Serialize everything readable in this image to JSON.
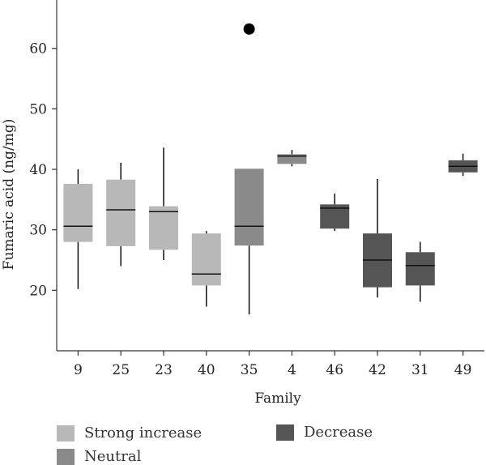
{
  "chart_data": {
    "type": "boxplot",
    "title": "",
    "xlabel": "Family",
    "ylabel": "Fumaric acid (ng/mg)",
    "ylim": [
      10,
      68
    ],
    "yticks": [
      20,
      30,
      40,
      50,
      60
    ],
    "grid": false,
    "legend_position": "bottom",
    "categories": [
      "9",
      "25",
      "23",
      "40",
      "35",
      "4",
      "46",
      "42",
      "31",
      "49"
    ],
    "groups": [
      {
        "name": "Strong increase",
        "color": "#b8b8b8"
      },
      {
        "name": "Neutral",
        "color": "#8a8a8a"
      },
      {
        "name": "Decrease",
        "color": "#555555"
      }
    ],
    "boxes": [
      {
        "category": "9",
        "group": "Strong increase",
        "whisker_low": 20.2,
        "q1": 28.0,
        "median": 30.6,
        "q3": 37.6,
        "whisker_high": 40.0
      },
      {
        "category": "25",
        "group": "Strong increase",
        "whisker_low": 24.0,
        "q1": 27.3,
        "median": 33.3,
        "q3": 38.3,
        "whisker_high": 41.1
      },
      {
        "category": "23",
        "group": "Strong increase",
        "whisker_low": 25.0,
        "q1": 26.7,
        "median": 33.0,
        "q3": 33.9,
        "whisker_high": 43.6
      },
      {
        "category": "40",
        "group": "Strong increase",
        "whisker_low": 17.3,
        "q1": 20.8,
        "median": 22.7,
        "q3": 29.4,
        "whisker_high": 29.8
      },
      {
        "category": "35",
        "group": "Neutral",
        "whisker_low": 16.0,
        "q1": 27.4,
        "median": 30.6,
        "q3": 40.1,
        "whisker_high": 40.1,
        "outliers": [
          63.2
        ]
      },
      {
        "category": "4",
        "group": "Neutral",
        "whisker_low": 40.5,
        "q1": 40.9,
        "median": 42.2,
        "q3": 42.5,
        "whisker_high": 43.2
      },
      {
        "category": "46",
        "group": "Decrease",
        "whisker_low": 29.8,
        "q1": 30.2,
        "median": 33.6,
        "q3": 34.2,
        "whisker_high": 36.0
      },
      {
        "category": "42",
        "group": "Decrease",
        "whisker_low": 18.8,
        "q1": 20.5,
        "median": 25.0,
        "q3": 29.4,
        "whisker_high": 38.4
      },
      {
        "category": "31",
        "group": "Decrease",
        "whisker_low": 18.1,
        "q1": 20.8,
        "median": 24.1,
        "q3": 26.3,
        "whisker_high": 28.0
      },
      {
        "category": "49",
        "group": "Decrease",
        "whisker_low": 38.9,
        "q1": 39.5,
        "median": 40.5,
        "q3": 41.5,
        "whisker_high": 42.6
      }
    ]
  }
}
